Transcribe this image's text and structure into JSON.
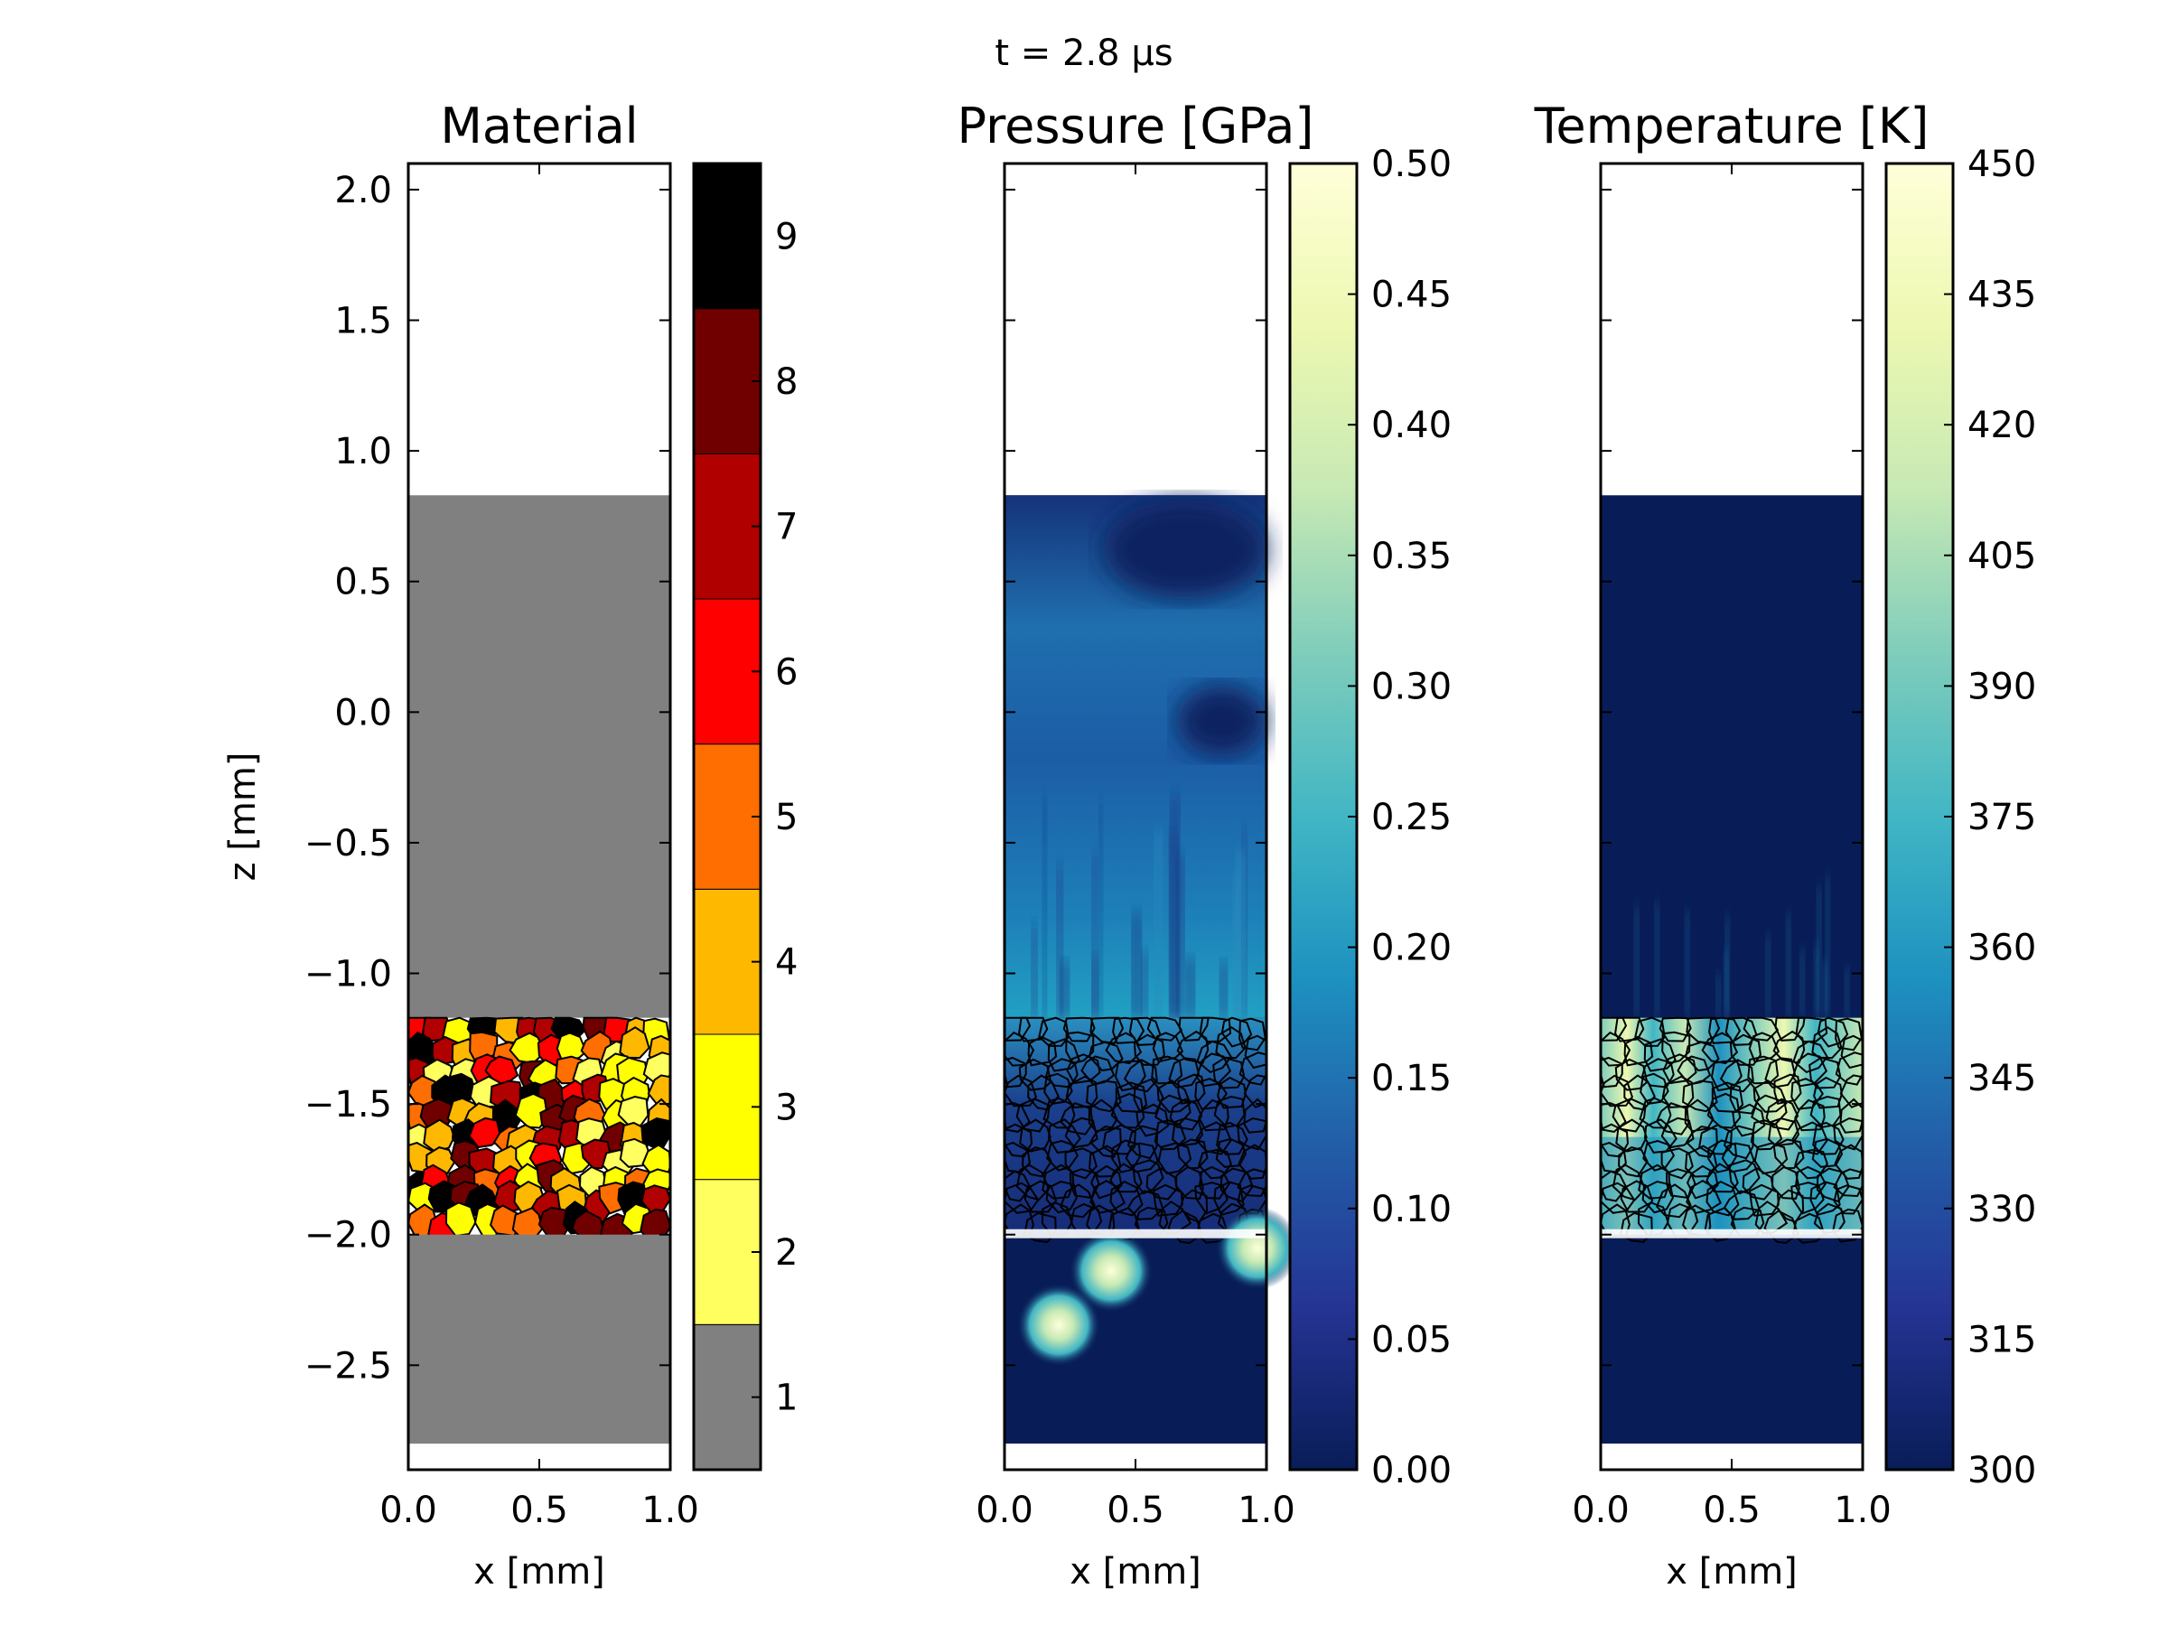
{
  "figure": {
    "time_label": "t =  2.8 μs"
  },
  "chart_data": [
    {
      "type": "heatmap",
      "title": "Material",
      "xlabel": "x [mm]",
      "ylabel": "z [mm]",
      "xlim": [
        0.0,
        1.0
      ],
      "ylim": [
        -2.9,
        2.1
      ],
      "xticks": [
        "0.0",
        "0.5",
        "1.0"
      ],
      "yticks": [
        {
          "value": 2.0,
          "label": "2.0"
        },
        {
          "value": 1.5,
          "label": "1.5"
        },
        {
          "value": 1.0,
          "label": "1.0"
        },
        {
          "value": 0.5,
          "label": "0.5"
        },
        {
          "value": 0.0,
          "label": "0.0"
        },
        {
          "value": -0.5,
          "label": "−0.5"
        },
        {
          "value": -1.0,
          "label": "−1.0"
        },
        {
          "value": -1.5,
          "label": "−1.5"
        },
        {
          "value": -2.0,
          "label": "−2.0"
        },
        {
          "value": -2.5,
          "label": "−2.5"
        }
      ],
      "regions": [
        {
          "material": 1,
          "z_range": [
            -2.0,
            0.83
          ]
        },
        {
          "material": "grains",
          "z_range": [
            -2.0,
            -1.17
          ]
        },
        {
          "material": 1,
          "z_range": [
            -2.8,
            -2.0
          ]
        }
      ],
      "colorbar": {
        "type": "discrete",
        "range": [
          0.5,
          9.5
        ],
        "ticks": [
          "1",
          "2",
          "3",
          "4",
          "5",
          "6",
          "7",
          "8",
          "9"
        ],
        "colors": [
          "#808080",
          "#ffff60",
          "#ffff00",
          "#ffb800",
          "#ff6e00",
          "#ff0000",
          "#b00000",
          "#700000",
          "#000000"
        ]
      }
    },
    {
      "type": "heatmap",
      "title": "Pressure [GPa]",
      "xlabel": "x [mm]",
      "xlim": [
        0.0,
        1.0
      ],
      "ylim": [
        -2.9,
        2.1
      ],
      "xticks": [
        "0.0",
        "0.5",
        "1.0"
      ],
      "colorbar": {
        "type": "continuous",
        "range": [
          0.0,
          0.5
        ],
        "ticks": [
          "0.00",
          "0.05",
          "0.10",
          "0.15",
          "0.20",
          "0.25",
          "0.30",
          "0.35",
          "0.40",
          "0.45",
          "0.50"
        ],
        "colormap": "YlGnBu_r"
      }
    },
    {
      "type": "heatmap",
      "title": "Temperature [K]",
      "xlabel": "x [mm]",
      "xlim": [
        0.0,
        1.0
      ],
      "ylim": [
        -2.9,
        2.1
      ],
      "xticks": [
        "0.0",
        "0.5",
        "1.0"
      ],
      "colorbar": {
        "type": "continuous",
        "range": [
          300,
          450
        ],
        "ticks": [
          "300",
          "315",
          "330",
          "345",
          "360",
          "375",
          "390",
          "405",
          "420",
          "435",
          "450"
        ],
        "colormap": "YlGnBu_r"
      }
    }
  ]
}
